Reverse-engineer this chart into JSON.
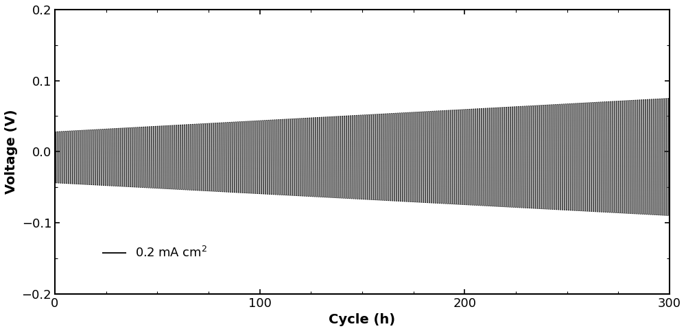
{
  "title": "",
  "xlabel": "Cycle (h)",
  "ylabel": "Voltage (V)",
  "xlim": [
    0,
    300
  ],
  "ylim": [
    -0.2,
    0.2
  ],
  "xticks": [
    0,
    100,
    200,
    300
  ],
  "yticks": [
    -0.2,
    -0.1,
    0.0,
    0.1,
    0.2
  ],
  "line_color": "#1a1a1a",
  "line_width": 0.6,
  "legend_label": "0.2 mA cm⁻²",
  "n_cycles": 300,
  "points_per_half": 20,
  "initial_upper": 0.028,
  "final_upper": 0.075,
  "initial_lower": -0.044,
  "final_lower": -0.09,
  "upper_drift": 0.0,
  "lower_drift": 0.0,
  "background_color": "#ffffff",
  "font_size": 14,
  "tick_font_size": 13
}
